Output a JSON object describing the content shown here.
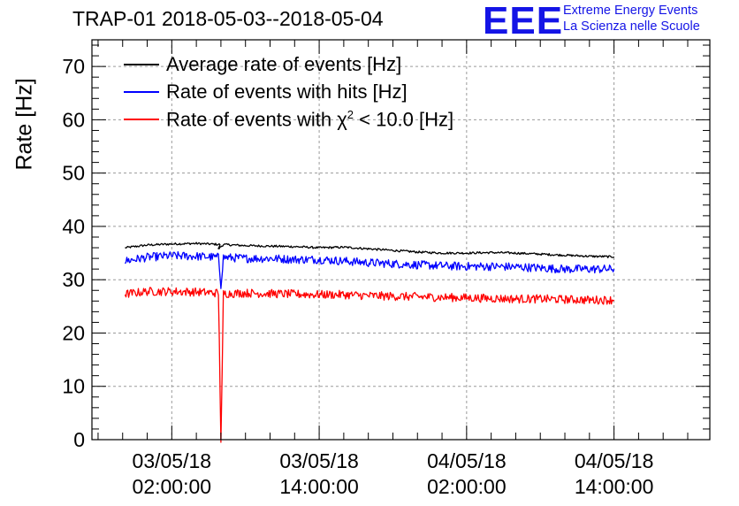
{
  "chart_data": {
    "type": "line",
    "title": "TRAP-01 2018-05-03--2018-05-04",
    "xlabel": "",
    "ylabel": "Rate [Hz]",
    "ylim": [
      0,
      75
    ],
    "yticks": [
      0,
      10,
      20,
      30,
      40,
      50,
      60,
      70
    ],
    "ytick_labels": [
      "0",
      "10",
      "20",
      "30",
      "40",
      "50",
      "60",
      "70"
    ],
    "xlim_hours": [
      -6.5,
      43.8
    ],
    "xticks_hours": [
      0,
      12,
      24,
      36
    ],
    "xtick_labels": [
      {
        "date": "03/05/18",
        "time": "02:00:00"
      },
      {
        "date": "03/05/18",
        "time": "14:00:00"
      },
      {
        "date": "04/05/18",
        "time": "02:00:00"
      },
      {
        "date": "04/05/18",
        "time": "14:00:00"
      }
    ],
    "grid": true,
    "legend_position": "top-left",
    "series": [
      {
        "name": "Average rate of events [Hz]",
        "color": "#000000",
        "x_hours": [
          -3.8,
          -2,
          0,
          2,
          4,
          3.8,
          4.2,
          6,
          8,
          10,
          12,
          14,
          16,
          18,
          20,
          22,
          24,
          26,
          28,
          30,
          32,
          34,
          36
        ],
        "values": [
          36.0,
          36.5,
          36.7,
          36.8,
          36.6,
          35.8,
          36.6,
          36.4,
          36.3,
          36.2,
          36.0,
          36.1,
          35.8,
          35.5,
          35.2,
          35.0,
          35.0,
          35.1,
          35.0,
          34.8,
          34.6,
          34.4,
          34.3
        ],
        "noise": 0.4
      },
      {
        "name": "Rate of events with hits [Hz]",
        "color": "#0000ff",
        "x_hours": [
          -3.8,
          -2,
          0,
          2,
          3.8,
          4.0,
          4.2,
          6,
          8,
          10,
          12,
          14,
          16,
          18,
          20,
          22,
          24,
          26,
          28,
          30,
          32,
          34,
          36
        ],
        "values": [
          33.5,
          34.2,
          34.5,
          34.4,
          34.2,
          29.0,
          34.2,
          34.0,
          34.0,
          33.8,
          33.8,
          33.5,
          33.2,
          33.0,
          32.8,
          32.6,
          32.5,
          32.5,
          32.4,
          32.2,
          32.0,
          32.0,
          32.0
        ],
        "noise": 1.6
      },
      {
        "name": "Rate of events with χ² < 10.0 [Hz]",
        "name_main": "Rate of events with ",
        "name_chi": "χ",
        "name_exp": "2",
        "name_rest": " < 10.0 [Hz]",
        "color": "#ff0000",
        "x_hours": [
          -3.8,
          -2,
          0,
          2,
          3.8,
          4.0,
          4.1,
          4.2,
          6,
          8,
          10,
          12,
          14,
          16,
          18,
          20,
          22,
          24,
          26,
          28,
          30,
          32,
          34,
          36
        ],
        "values": [
          27.3,
          27.8,
          27.8,
          27.7,
          27.5,
          0.0,
          12.0,
          27.4,
          27.5,
          27.4,
          27.3,
          27.2,
          27.2,
          27.0,
          26.9,
          26.8,
          26.7,
          26.6,
          26.5,
          26.4,
          26.4,
          26.3,
          26.2,
          26.2
        ],
        "noise": 1.6
      }
    ]
  },
  "logo": {
    "mark": "EEE",
    "line1": "Extreme Energy Events",
    "line2": "La Scienza nelle Scuole"
  }
}
